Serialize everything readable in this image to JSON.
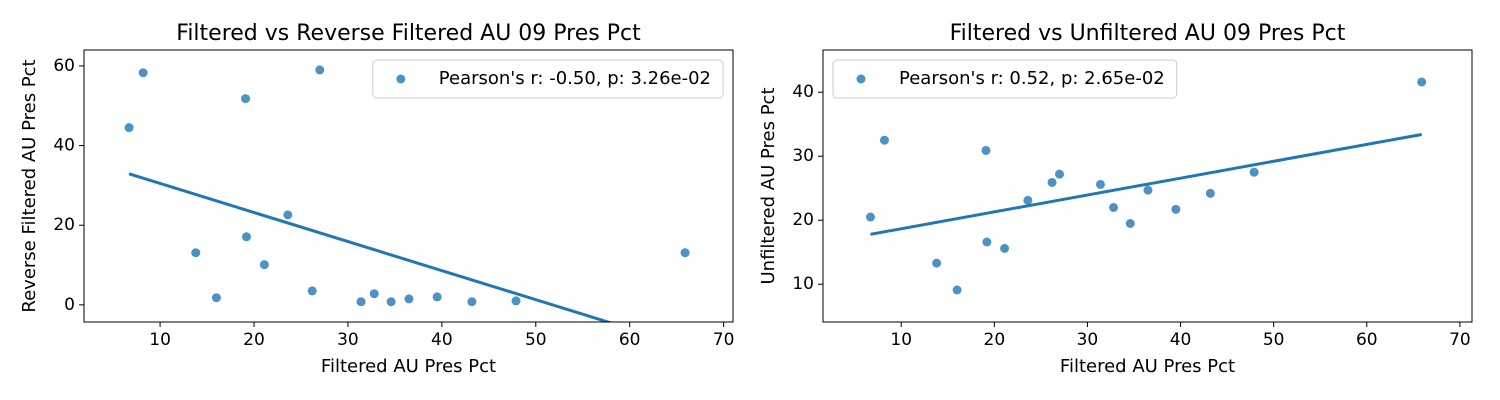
{
  "chart_data": [
    {
      "type": "scatter",
      "title": "Filtered vs Reverse Filtered AU 09 Pres Pct",
      "xlabel": "Filtered AU Pres Pct",
      "ylabel": "Reverse Filtered AU Pres Pct",
      "xlim": [
        1.9,
        71.0
      ],
      "ylim": [
        -4.3,
        64.0
      ],
      "xticks": [
        10,
        20,
        30,
        40,
        50,
        60,
        70
      ],
      "yticks": [
        0,
        20,
        40,
        60
      ],
      "legend": "upper right",
      "series": [
        {
          "name": "Pearson's r: -0.50, p: 3.26e-02",
          "color": "#1f77b4",
          "x": [
            6.7,
            8.2,
            13.8,
            16.0,
            19.1,
            19.2,
            21.1,
            23.6,
            26.2,
            27.0,
            31.4,
            32.8,
            34.6,
            36.5,
            39.5,
            43.2,
            47.9,
            65.9
          ],
          "values": [
            44.5,
            58.3,
            13.1,
            1.8,
            51.8,
            17.1,
            10.1,
            22.6,
            3.5,
            59.0,
            0.8,
            2.8,
            0.8,
            1.5,
            2.0,
            0.8,
            1.0,
            13.1
          ]
        }
      ],
      "trendline": {
        "color": "#1f77b4",
        "x": [
          6.7,
          65.9
        ],
        "values": [
          32.9,
          -10.3
        ]
      }
    },
    {
      "type": "scatter",
      "title": "Filtered vs Unfiltered AU 09 Pres Pct",
      "xlabel": "Filtered AU Pres Pct",
      "ylabel": "Unfiltered AU Pres Pct",
      "xlim": [
        1.6,
        71.3
      ],
      "ylim": [
        4.1,
        46.6
      ],
      "xticks": [
        10,
        20,
        30,
        40,
        50,
        60,
        70
      ],
      "yticks": [
        10,
        20,
        30,
        40
      ],
      "legend": "upper left",
      "series": [
        {
          "name": "Pearson's r: 0.52, p: 2.65e-02",
          "color": "#1f77b4",
          "x": [
            6.7,
            8.2,
            13.8,
            16.0,
            19.1,
            19.2,
            21.1,
            23.6,
            26.2,
            27.0,
            31.4,
            32.8,
            34.6,
            36.5,
            39.5,
            43.2,
            47.9,
            65.9
          ],
          "values": [
            20.5,
            32.5,
            13.3,
            9.1,
            30.9,
            16.6,
            15.6,
            23.1,
            25.9,
            27.2,
            25.6,
            22.0,
            19.5,
            24.7,
            21.7,
            24.2,
            27.5,
            41.6
          ]
        }
      ],
      "trendline": {
        "color": "#1f77b4",
        "x": [
          6.7,
          65.9
        ],
        "values": [
          17.8,
          33.4
        ]
      }
    }
  ]
}
